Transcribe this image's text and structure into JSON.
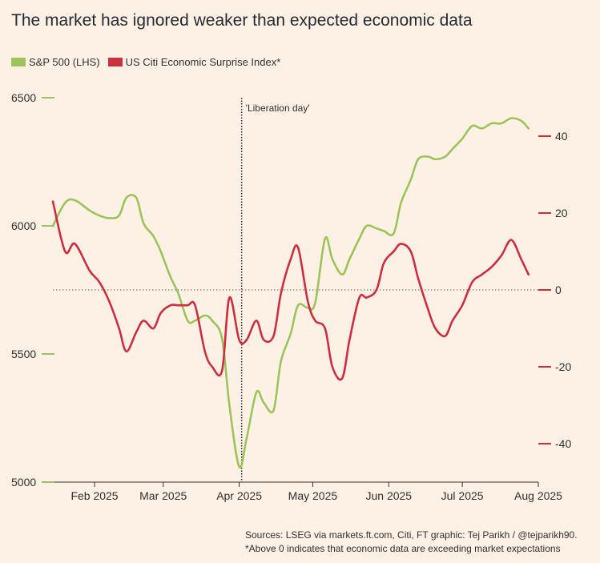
{
  "title": "The market has ignored weaker than expected economic data",
  "legend": {
    "sp500": "S&P 500 (LHS)",
    "citi": "US Citi Economic Surprise Index*"
  },
  "colors": {
    "sp500": "#9dc35a",
    "citi": "#cc2f40",
    "background": "#fdf1e6",
    "axis": "#33302e"
  },
  "footer": {
    "sources": "Sources: LSEG via markets.ft.com, Citi, FT graphic: Tej Parikh / @tejparikh90.",
    "note": "*Above 0 indicates that economic data are exceeding market expectations"
  },
  "chart_data": {
    "type": "line",
    "title": "The market has ignored weaker than expected economic data",
    "x_range": [
      "2025-01-15",
      "2025-08-01"
    ],
    "x_ticks": [
      "Feb 2025",
      "Mar 2025",
      "Apr 2025",
      "May 2025",
      "Jun 2025",
      "Jul 2025",
      "Aug 2025"
    ],
    "y_left": {
      "label": "S&P 500",
      "range": [
        5000,
        6500
      ],
      "ticks": [
        5000,
        5500,
        6000,
        6500
      ]
    },
    "y_right": {
      "label": "US Citi Economic Surprise Index",
      "range": [
        -50,
        50
      ],
      "ticks": [
        -40,
        -20,
        0,
        20,
        40
      ]
    },
    "annotation": {
      "date": "2025-04-02",
      "label": "'Liberation day'"
    },
    "series": [
      {
        "name": "S&P 500 (LHS)",
        "axis": "left",
        "dates": [
          "2025-01-15",
          "2025-01-20",
          "2025-01-24",
          "2025-01-30",
          "2025-02-03",
          "2025-02-07",
          "2025-02-11",
          "2025-02-14",
          "2025-02-18",
          "2025-02-21",
          "2025-02-25",
          "2025-02-28",
          "2025-03-04",
          "2025-03-07",
          "2025-03-11",
          "2025-03-14",
          "2025-03-18",
          "2025-03-21",
          "2025-03-25",
          "2025-03-28",
          "2025-04-01",
          "2025-04-04",
          "2025-04-08",
          "2025-04-11",
          "2025-04-15",
          "2025-04-18",
          "2025-04-22",
          "2025-04-25",
          "2025-04-29",
          "2025-05-02",
          "2025-05-06",
          "2025-05-09",
          "2025-05-13",
          "2025-05-16",
          "2025-05-20",
          "2025-05-23",
          "2025-05-27",
          "2025-05-30",
          "2025-06-03",
          "2025-06-06",
          "2025-06-10",
          "2025-06-13",
          "2025-06-17",
          "2025-06-20",
          "2025-06-24",
          "2025-06-27",
          "2025-07-01",
          "2025-07-05",
          "2025-07-09",
          "2025-07-13",
          "2025-07-17",
          "2025-07-21",
          "2025-07-25",
          "2025-07-28"
        ],
        "values": [
          6000,
          6090,
          6100,
          6060,
          6040,
          6030,
          6040,
          6110,
          6110,
          6010,
          5960,
          5900,
          5800,
          5740,
          5630,
          5630,
          5650,
          5630,
          5560,
          5300,
          5060,
          5170,
          5350,
          5310,
          5280,
          5470,
          5580,
          5690,
          5680,
          5700,
          5950,
          5870,
          5810,
          5870,
          5950,
          6000,
          5990,
          5980,
          5970,
          6090,
          6180,
          6260,
          6270,
          6260,
          6270,
          6300,
          6340,
          6390,
          6380,
          6400,
          6400,
          6420,
          6410,
          6380
        ]
      },
      {
        "name": "US Citi Economic Surprise Index*",
        "axis": "right",
        "dates": [
          "2025-01-15",
          "2025-01-20",
          "2025-01-24",
          "2025-01-30",
          "2025-02-03",
          "2025-02-07",
          "2025-02-11",
          "2025-02-14",
          "2025-02-18",
          "2025-02-21",
          "2025-02-25",
          "2025-02-28",
          "2025-03-04",
          "2025-03-07",
          "2025-03-11",
          "2025-03-14",
          "2025-03-18",
          "2025-03-21",
          "2025-03-25",
          "2025-03-28",
          "2025-04-01",
          "2025-04-04",
          "2025-04-08",
          "2025-04-11",
          "2025-04-15",
          "2025-04-18",
          "2025-04-22",
          "2025-04-25",
          "2025-04-29",
          "2025-05-02",
          "2025-05-06",
          "2025-05-09",
          "2025-05-13",
          "2025-05-16",
          "2025-05-20",
          "2025-05-23",
          "2025-05-27",
          "2025-05-30",
          "2025-06-03",
          "2025-06-06",
          "2025-06-10",
          "2025-06-13",
          "2025-06-17",
          "2025-06-20",
          "2025-06-24",
          "2025-06-27",
          "2025-07-01",
          "2025-07-05",
          "2025-07-09",
          "2025-07-13",
          "2025-07-17",
          "2025-07-21",
          "2025-07-25",
          "2025-07-28"
        ],
        "values": [
          23,
          10,
          12,
          5,
          2,
          -3,
          -10,
          -16,
          -11,
          -8,
          -10,
          -6,
          -4,
          -4,
          -4,
          -4,
          -16,
          -20,
          -21,
          -2,
          -13,
          -13,
          -8,
          -13,
          -12,
          -1,
          8,
          11,
          -3,
          -8,
          -10,
          -20,
          -23,
          -13,
          -2,
          -2,
          0,
          7,
          10,
          12,
          10,
          3,
          -5,
          -10,
          -12,
          -8,
          -4,
          2,
          4,
          6,
          9,
          13,
          8,
          4
        ]
      }
    ]
  }
}
